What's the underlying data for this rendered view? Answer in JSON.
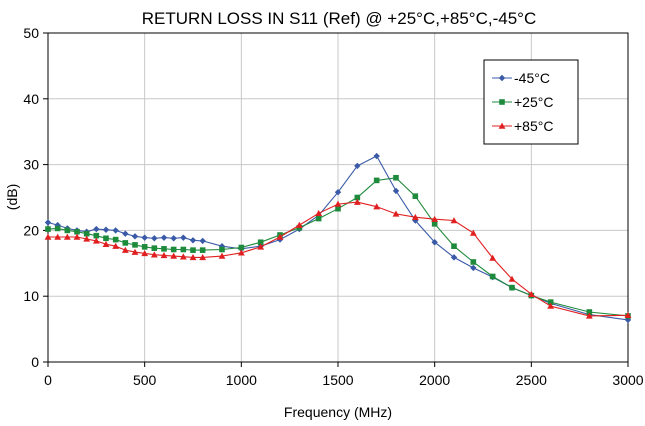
{
  "chart_data": {
    "type": "line",
    "title": "RETURN LOSS IN S11 (Ref) @ +25°C,+85°C,-45°C",
    "xlabel": "Frequency (MHz)",
    "ylabel": "(dB)",
    "xlim": [
      0,
      3000
    ],
    "ylim": [
      0,
      50
    ],
    "xticks": [
      0,
      500,
      1000,
      1500,
      2000,
      2500,
      3000
    ],
    "yticks": [
      0,
      10,
      20,
      30,
      40,
      50
    ],
    "grid": true,
    "legend_position": "top-right",
    "series": [
      {
        "name": "-45°C",
        "color": "#3a5aa8",
        "marker": "diamond",
        "x": [
          0,
          50,
          100,
          150,
          200,
          250,
          300,
          350,
          400,
          450,
          500,
          550,
          600,
          650,
          700,
          750,
          800,
          900,
          1000,
          1100,
          1200,
          1300,
          1400,
          1500,
          1600,
          1700,
          1800,
          1900,
          2000,
          2100,
          2200,
          2300,
          2400,
          2500,
          2600,
          2800,
          3000
        ],
        "y": [
          21.2,
          20.8,
          20.3,
          20.0,
          19.8,
          20.2,
          20.1,
          20.0,
          19.5,
          19.1,
          18.9,
          18.8,
          18.9,
          18.8,
          18.9,
          18.5,
          18.4,
          17.6,
          17.2,
          17.6,
          18.6,
          20.2,
          22.3,
          25.8,
          29.8,
          31.3,
          26.0,
          21.5,
          18.2,
          15.9,
          14.3,
          12.9,
          11.3,
          10.1,
          8.9,
          7.2,
          6.4
        ]
      },
      {
        "name": "+25°C",
        "color": "#1e8a3c",
        "marker": "square",
        "x": [
          0,
          50,
          100,
          150,
          200,
          250,
          300,
          350,
          400,
          450,
          500,
          550,
          600,
          650,
          700,
          750,
          800,
          900,
          1000,
          1100,
          1200,
          1300,
          1400,
          1500,
          1600,
          1700,
          1800,
          1900,
          2000,
          2100,
          2200,
          2300,
          2400,
          2500,
          2600,
          2800,
          3000
        ],
        "y": [
          20.2,
          20.3,
          20.0,
          19.8,
          19.5,
          19.2,
          18.8,
          18.6,
          18.1,
          17.8,
          17.5,
          17.3,
          17.2,
          17.1,
          17.1,
          17.0,
          17.0,
          17.1,
          17.4,
          18.2,
          19.3,
          20.4,
          21.8,
          23.3,
          25.0,
          27.6,
          28.0,
          25.2,
          21.0,
          17.6,
          15.2,
          13.0,
          11.3,
          10.1,
          9.1,
          7.6,
          7.0
        ]
      },
      {
        "name": "+85°C",
        "color": "#e02020",
        "marker": "triangle",
        "x": [
          0,
          50,
          100,
          150,
          200,
          250,
          300,
          350,
          400,
          450,
          500,
          550,
          600,
          650,
          700,
          750,
          800,
          900,
          1000,
          1100,
          1200,
          1300,
          1400,
          1500,
          1600,
          1700,
          1800,
          1900,
          2000,
          2100,
          2200,
          2300,
          2400,
          2500,
          2600,
          2800,
          3000
        ],
        "y": [
          19.0,
          19.0,
          19.0,
          19.0,
          18.7,
          18.4,
          17.9,
          17.6,
          17.0,
          16.7,
          16.5,
          16.3,
          16.2,
          16.1,
          16.0,
          15.9,
          15.9,
          16.1,
          16.6,
          17.5,
          19.0,
          20.8,
          22.6,
          24.0,
          24.3,
          23.6,
          22.5,
          22.0,
          21.7,
          21.5,
          19.6,
          15.8,
          12.6,
          10.3,
          8.5,
          7.0,
          7.1
        ]
      }
    ]
  }
}
